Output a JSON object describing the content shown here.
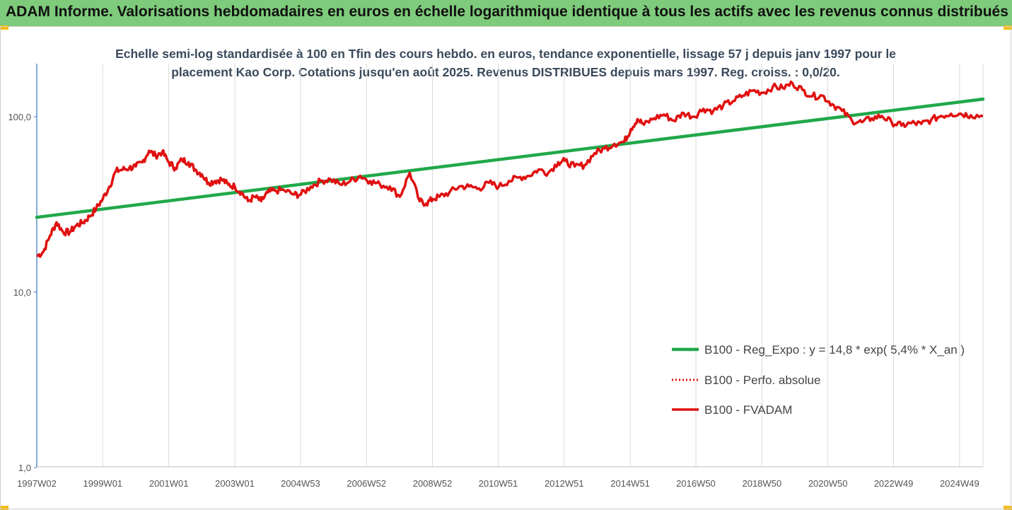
{
  "banner": {
    "title": "ADAM Informe. Valorisations hebdomadaires en euros en échelle logarithmique identique à tous les actifs avec les revenus connus distribués"
  },
  "colors": {
    "trend": "#21a84a",
    "fvadam": "#e01010",
    "perfo": "#e01010",
    "banner": "#7ecb7b",
    "axis": "#3a73c2",
    "grid": "#d9d9d9"
  },
  "chart_data": {
    "type": "line",
    "title": "Echelle semi-log standardisée à 100 en Tfin des cours hebdo. en euros, tendance exponentielle, lissage 57 j depuis janv 1997 pour le placement Kao Corp. Cotations jusqu'en août 2025. Revenus DISTRIBUES depuis mars 1997. Reg. croiss. : 0,0/20.",
    "y_scale": "log",
    "ylim": [
      1,
      170
    ],
    "y_ticks": [
      "1,0",
      "10,0",
      "100,0"
    ],
    "y_tick_values": [
      1,
      10,
      100
    ],
    "x_range": [
      1997.0,
      2025.67
    ],
    "x_ticks": [
      "1997W02",
      "1999W01",
      "2001W01",
      "2003W01",
      "2004W53",
      "2006W52",
      "2008W52",
      "2010W51",
      "2012W51",
      "2014W51",
      "2016W50",
      "2018W50",
      "2020W50",
      "2022W49",
      "2024W49"
    ],
    "x_tick_values": [
      1997.0,
      1999.0,
      2001.0,
      2003.0,
      2004.99,
      2006.99,
      2008.99,
      2010.98,
      2012.98,
      2014.98,
      2016.97,
      2018.97,
      2020.97,
      2022.96,
      2024.96
    ],
    "grid": "vertical",
    "legend_position": "bottom-right",
    "series": [
      {
        "name": "B100 - Reg_Expo : y = 14,8 * exp( 5,4% *  X_an )",
        "style": "solid",
        "x": [
          1997.0,
          2025.67
        ],
        "y": [
          26.7,
          126
        ]
      },
      {
        "name": "B100 - Perfo. absolue",
        "style": "dotted",
        "x": [],
        "y": []
      },
      {
        "name": "B100 - FVADAM",
        "style": "solid",
        "x": [
          1997.0,
          1997.2,
          1997.4,
          1997.6,
          1997.8,
          1998.0,
          1998.2,
          1998.4,
          1998.6,
          1998.8,
          1999.0,
          1999.2,
          1999.4,
          1999.6,
          1999.8,
          2000.0,
          2000.2,
          2000.4,
          2000.6,
          2000.8,
          2001.0,
          2001.2,
          2001.4,
          2001.6,
          2001.8,
          2002.0,
          2002.2,
          2002.4,
          2002.6,
          2002.8,
          2003.0,
          2003.2,
          2003.4,
          2003.6,
          2003.8,
          2004.0,
          2004.2,
          2004.5,
          2004.8,
          2005.0,
          2005.3,
          2005.6,
          2005.9,
          2006.2,
          2006.5,
          2006.8,
          2007.1,
          2007.4,
          2007.7,
          2008.0,
          2008.3,
          2008.6,
          2008.8,
          2009.0,
          2009.2,
          2009.5,
          2009.8,
          2010.1,
          2010.4,
          2010.7,
          2011.0,
          2011.3,
          2011.6,
          2011.9,
          2012.2,
          2012.5,
          2012.8,
          2013.0,
          2013.3,
          2013.6,
          2013.9,
          2014.2,
          2014.5,
          2014.8,
          2015.0,
          2015.2,
          2015.4,
          2015.7,
          2016.0,
          2016.3,
          2016.6,
          2016.9,
          2017.2,
          2017.5,
          2017.8,
          2018.1,
          2018.4,
          2018.7,
          2019.0,
          2019.3,
          2019.6,
          2019.9,
          2020.2,
          2020.5,
          2020.8,
          2021.1,
          2021.4,
          2021.7,
          2022.0,
          2022.3,
          2022.6,
          2022.9,
          2023.2,
          2023.5,
          2023.8,
          2024.1,
          2024.4,
          2024.7,
          2025.0,
          2025.3,
          2025.67
        ],
        "y": [
          16,
          17,
          21,
          25,
          22,
          22,
          24,
          25,
          27,
          30,
          34,
          40,
          49,
          50,
          51,
          52,
          55,
          64,
          60,
          63,
          55,
          51,
          57,
          55,
          50,
          47,
          42,
          43,
          44,
          41,
          40,
          37,
          33,
          35,
          33,
          37,
          38,
          38,
          36,
          36,
          40,
          43,
          44,
          41,
          43,
          46,
          43,
          41,
          40,
          35,
          48,
          33,
          32,
          34,
          35,
          37,
          40,
          40,
          39,
          42,
          40,
          43,
          45,
          46,
          50,
          48,
          55,
          56,
          52,
          53,
          62,
          66,
          70,
          72,
          85,
          97,
          90,
          98,
          103,
          95,
          105,
          100,
          111,
          108,
          116,
          123,
          132,
          141,
          137,
          148,
          146,
          155,
          142,
          131,
          132,
          118,
          108,
          95,
          93,
          98,
          101,
          93,
          89,
          92,
          91,
          96,
          101,
          104,
          104,
          102,
          101
        ]
      }
    ]
  }
}
